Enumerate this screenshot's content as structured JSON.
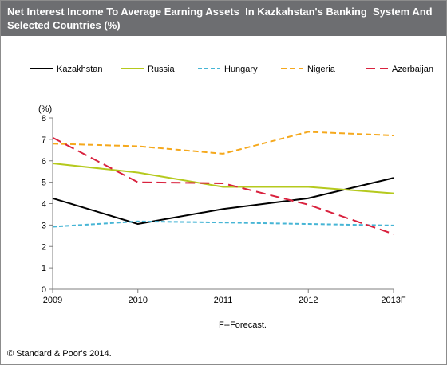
{
  "header": {
    "title": "Net Interest Income To Average Earning Assets  In Kazkahstan's Banking  System And  Selected Countries (%)"
  },
  "chart_data": {
    "type": "line",
    "title": "Net Interest Income To Average Earning Assets  In Kazkahstan's Banking  System And  Selected Countries (%)",
    "ylabel": "(%)",
    "xlabel": "",
    "categories": [
      "2009",
      "2010",
      "2011",
      "2012",
      "2013F"
    ],
    "ylim": [
      0,
      8
    ],
    "yticks": [
      "0",
      "1",
      "2",
      "3",
      "4",
      "5",
      "6",
      "7",
      "8"
    ],
    "grid": false,
    "legend_position": "top",
    "series": [
      {
        "name": "Kazakhstan",
        "color": "#000000",
        "dash": "solid",
        "values": [
          4.25,
          3.05,
          3.75,
          4.25,
          5.2
        ]
      },
      {
        "name": "Russia",
        "color": "#b5c91d",
        "dash": "solid",
        "values": [
          5.88,
          5.45,
          4.78,
          4.78,
          4.48
        ]
      },
      {
        "name": "Hungary",
        "color": "#46b5d5",
        "dash": "short-dash",
        "values": [
          2.92,
          3.17,
          3.12,
          3.05,
          2.98
        ]
      },
      {
        "name": "Nigeria",
        "color": "#f5a81c",
        "dash": "dash",
        "values": [
          6.8,
          6.68,
          6.33,
          7.35,
          7.18
        ]
      },
      {
        "name": "Azerbaijan",
        "color": "#d9223e",
        "dash": "long-dash",
        "values": [
          7.08,
          5.0,
          4.95,
          3.95,
          2.58
        ]
      }
    ]
  },
  "notes": {
    "forecast": "F--Forecast."
  },
  "footer": {
    "copyright": "© Standard & Poor's 2014."
  }
}
